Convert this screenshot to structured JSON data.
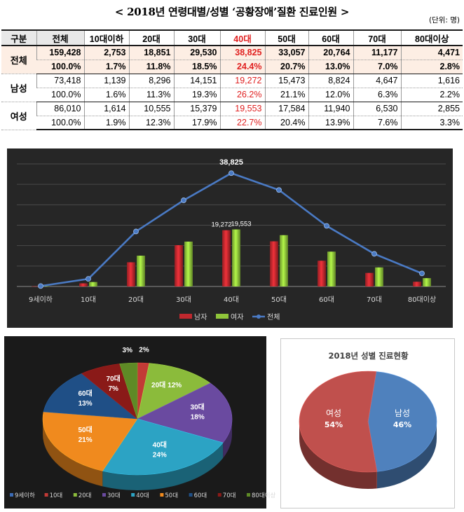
{
  "header": {
    "title": "< 2018년 연령대별/성별 ‘공황장애’질환 진료인원 >",
    "unit": "(단위: 명)"
  },
  "table": {
    "columns": [
      "구분",
      "전체",
      "10대이하",
      "20대",
      "30대",
      "40대",
      "50대",
      "60대",
      "70대",
      "80대이상"
    ],
    "highlight_column": "40대",
    "groups": [
      {
        "label": "전체",
        "counts": [
          "159,428",
          "2,753",
          "18,851",
          "29,530",
          "38,825",
          "33,057",
          "20,764",
          "11,177",
          "4,471"
        ],
        "pcts": [
          "100.0%",
          "1.7%",
          "11.8%",
          "18.5%",
          "24.4%",
          "20.7%",
          "13.0%",
          "7.0%",
          "2.8%"
        ]
      },
      {
        "label": "남성",
        "counts": [
          "73,418",
          "1,139",
          "8,296",
          "14,151",
          "19,272",
          "15,473",
          "8,824",
          "4,647",
          "1,616"
        ],
        "pcts": [
          "100.0%",
          "1.6%",
          "11.3%",
          "19.3%",
          "26.2%",
          "21.1%",
          "12.0%",
          "6.3%",
          "2.2%"
        ]
      },
      {
        "label": "여성",
        "counts": [
          "86,010",
          "1,614",
          "10,555",
          "15,379",
          "19,553",
          "17,584",
          "11,940",
          "6,530",
          "2,855"
        ],
        "pcts": [
          "100.0%",
          "1.9%",
          "12.3%",
          "17.9%",
          "22.7%",
          "20.4%",
          "13.9%",
          "7.6%",
          "3.3%"
        ]
      }
    ]
  },
  "chart_data": [
    {
      "type": "bar",
      "categories": [
        "9세이하",
        "10대",
        "20대",
        "30대",
        "40대",
        "50대",
        "60대",
        "70대",
        "80대이상"
      ],
      "series": [
        {
          "name": "남자",
          "kind": "bar",
          "color": "#c0282e",
          "values": [
            60,
            1079,
            8296,
            14151,
            19272,
            15473,
            8824,
            4647,
            1616
          ]
        },
        {
          "name": "여자",
          "kind": "bar",
          "color": "#8fc53a",
          "values": [
            90,
            1524,
            10555,
            15379,
            19553,
            17584,
            11940,
            6530,
            2855
          ]
        },
        {
          "name": "전체",
          "kind": "line",
          "color": "#4a7ac4",
          "values": [
            150,
            2603,
            18851,
            29530,
            38825,
            33057,
            20764,
            11177,
            4471
          ]
        }
      ],
      "annotations": [
        {
          "series": "전체",
          "category": "40대",
          "label": "38,825"
        },
        {
          "series": "남자",
          "category": "40대",
          "label": "19,272"
        },
        {
          "series": "여자",
          "category": "40대",
          "label": "19,553"
        }
      ],
      "ylim": [
        0,
        42000
      ],
      "grid": true,
      "legend": "bottom"
    },
    {
      "type": "pie",
      "categories": [
        "9세이하",
        "10대",
        "20대",
        "30대",
        "40대",
        "50대",
        "60대",
        "70대",
        "80대이상"
      ],
      "values": [
        0,
        2,
        12,
        18,
        24,
        21,
        13,
        7,
        3
      ],
      "colors": [
        "#3b6bb5",
        "#c23a36",
        "#8bbb3b",
        "#6a4aa0",
        "#2ca3c4",
        "#f08a1e",
        "#1f4f86",
        "#8a1a18",
        "#5e8a26"
      ],
      "slice_labels": [
        "",
        "2%",
        "20대 12%",
        "30대\n18%",
        "40대\n24%",
        "50대\n21%",
        "60대\n13%",
        "70대\n7%",
        "3%"
      ],
      "legend": "bottom"
    },
    {
      "type": "pie",
      "title": "2018년 성별 진료현황",
      "categories": [
        "남성",
        "여성"
      ],
      "values": [
        46,
        54
      ],
      "colors": [
        "#4f81bd",
        "#c0504d"
      ],
      "slice_labels": [
        "남성\n46%",
        "여성\n54%"
      ]
    }
  ]
}
